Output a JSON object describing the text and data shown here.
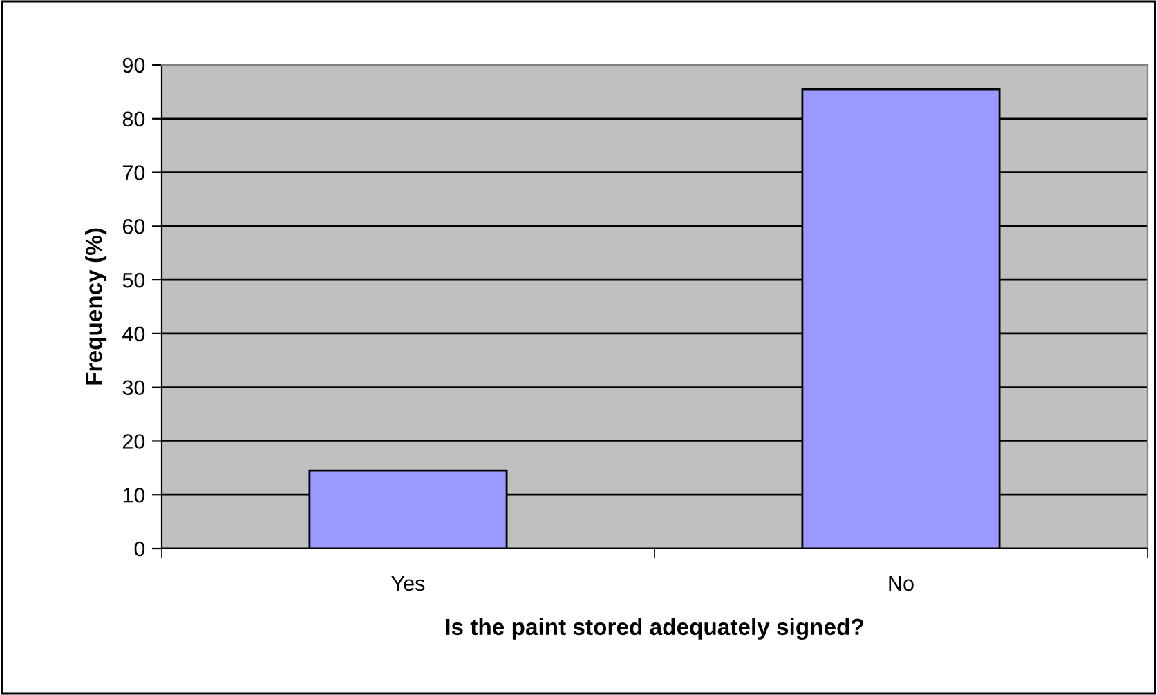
{
  "chart_data": {
    "type": "bar",
    "xlabel": "Is the paint stored adequately signed?",
    "ylabel": "Frequency (%)",
    "categories": [
      "Yes",
      "No"
    ],
    "values": [
      14.5,
      85.5
    ],
    "color": "#9999ff",
    "ylim": [
      0,
      90
    ],
    "yticks": [
      0,
      10,
      20,
      30,
      40,
      50,
      60,
      70,
      80,
      90
    ],
    "grid": "y",
    "legend": false
  }
}
